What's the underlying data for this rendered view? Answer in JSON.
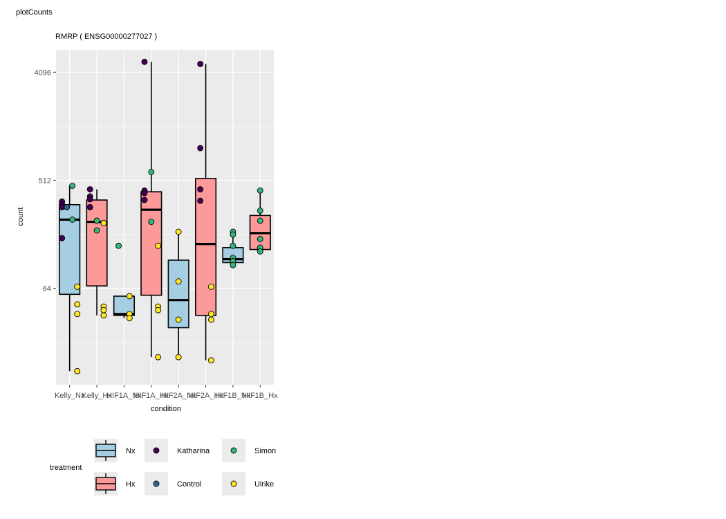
{
  "window_title": "plotCounts",
  "chart_data": {
    "type": "boxplot",
    "title": "RMRP ( ENSG00000277027 )",
    "xlabel": "condition",
    "ylabel": "count",
    "y_scale": "log2",
    "y_ticks": [
      64,
      512,
      4096
    ],
    "y_tick_labels": [
      "64",
      "512",
      "4096"
    ],
    "ylim": [
      10,
      6300
    ],
    "grid": true,
    "categories": [
      "Kelly_Nx",
      "Kelly_Hx",
      "HIF1A_Nx",
      "HIF1A_Hx",
      "HIF2A_Nx",
      "HIF2A_Hx",
      "HIF1B_Nx",
      "HIF1B_Hx"
    ],
    "boxes": [
      {
        "category": "Kelly_Nx",
        "treatment": "Nx",
        "q1": 57,
        "median": 240,
        "q3": 320,
        "lower": 13,
        "upper": 460
      },
      {
        "category": "Kelly_Hx",
        "treatment": "Hx",
        "q1": 67,
        "median": 230,
        "q3": 350,
        "lower": 38,
        "upper": 430
      },
      {
        "category": "HIF1A_Nx",
        "treatment": "Nx",
        "q1": 38,
        "median": 39,
        "q3": 55,
        "lower": 36,
        "upper": 55
      },
      {
        "category": "HIF1A_Hx",
        "treatment": "Hx",
        "q1": 56,
        "median": 290,
        "q3": 410,
        "lower": 17,
        "upper": 5000
      },
      {
        "category": "HIF2A_Nx",
        "treatment": "Nx",
        "q1": 30,
        "median": 51,
        "q3": 110,
        "lower": 17,
        "upper": 190
      },
      {
        "category": "HIF2A_Hx",
        "treatment": "Hx",
        "q1": 38,
        "median": 150,
        "q3": 530,
        "lower": 16,
        "upper": 4800
      },
      {
        "category": "HIF1B_Nx",
        "treatment": "Nx",
        "q1": 105,
        "median": 112,
        "q3": 140,
        "lower": 100,
        "upper": 180
      },
      {
        "category": "HIF1B_Hx",
        "treatment": "Hx",
        "q1": 135,
        "median": 185,
        "q3": 260,
        "lower": 125,
        "upper": 400
      }
    ],
    "points": [
      {
        "category": "Kelly_Nx",
        "group": "Katharina",
        "y": 340,
        "dx": -0.28
      },
      {
        "category": "Kelly_Nx",
        "group": "Katharina",
        "y": 320,
        "dx": -0.28
      },
      {
        "category": "Kelly_Nx",
        "group": "Katharina",
        "y": 305,
        "dx": -0.28
      },
      {
        "category": "Kelly_Nx",
        "group": "Katharina",
        "y": 168,
        "dx": -0.28
      },
      {
        "category": "Kelly_Nx",
        "group": "Control",
        "y": 305,
        "dx": -0.1
      },
      {
        "category": "Kelly_Nx",
        "group": "Simon",
        "y": 460,
        "dx": 0.1
      },
      {
        "category": "Kelly_Nx",
        "group": "Simon",
        "y": 240,
        "dx": 0.1
      },
      {
        "category": "Kelly_Nx",
        "group": "Ulrike",
        "y": 66,
        "dx": 0.28
      },
      {
        "category": "Kelly_Nx",
        "group": "Ulrike",
        "y": 47,
        "dx": 0.28
      },
      {
        "category": "Kelly_Nx",
        "group": "Ulrike",
        "y": 39,
        "dx": 0.28
      },
      {
        "category": "Kelly_Nx",
        "group": "Ulrike",
        "y": 13,
        "dx": 0.28
      },
      {
        "category": "Kelly_Hx",
        "group": "Katharina",
        "y": 430,
        "dx": -0.25
      },
      {
        "category": "Kelly_Hx",
        "group": "Katharina",
        "y": 375,
        "dx": -0.25
      },
      {
        "category": "Kelly_Hx",
        "group": "Katharina",
        "y": 355,
        "dx": -0.25
      },
      {
        "category": "Kelly_Hx",
        "group": "Katharina",
        "y": 305,
        "dx": -0.25
      },
      {
        "category": "Kelly_Hx",
        "group": "Simon",
        "y": 235,
        "dx": 0.0
      },
      {
        "category": "Kelly_Hx",
        "group": "Simon",
        "y": 195,
        "dx": 0.0
      },
      {
        "category": "Kelly_Hx",
        "group": "Ulrike",
        "y": 225,
        "dx": 0.25
      },
      {
        "category": "Kelly_Hx",
        "group": "Ulrike",
        "y": 45,
        "dx": 0.25
      },
      {
        "category": "Kelly_Hx",
        "group": "Ulrike",
        "y": 42,
        "dx": 0.25
      },
      {
        "category": "Kelly_Hx",
        "group": "Ulrike",
        "y": 38,
        "dx": 0.25
      },
      {
        "category": "HIF1A_Nx",
        "group": "Simon",
        "y": 145,
        "dx": -0.2
      },
      {
        "category": "HIF1A_Nx",
        "group": "Ulrike",
        "y": 55,
        "dx": 0.2
      },
      {
        "category": "HIF1A_Nx",
        "group": "Ulrike",
        "y": 39,
        "dx": 0.2
      },
      {
        "category": "HIF1A_Nx",
        "group": "Ulrike",
        "y": 36,
        "dx": 0.2
      },
      {
        "category": "HIF1A_Hx",
        "group": "Katharina",
        "y": 5000,
        "dx": -0.25
      },
      {
        "category": "HIF1A_Hx",
        "group": "Katharina",
        "y": 420,
        "dx": -0.25
      },
      {
        "category": "HIF1A_Hx",
        "group": "Katharina",
        "y": 400,
        "dx": -0.25
      },
      {
        "category": "HIF1A_Hx",
        "group": "Katharina",
        "y": 350,
        "dx": -0.25
      },
      {
        "category": "HIF1A_Hx",
        "group": "Simon",
        "y": 600,
        "dx": 0.0
      },
      {
        "category": "HIF1A_Hx",
        "group": "Simon",
        "y": 230,
        "dx": 0.0
      },
      {
        "category": "HIF1A_Hx",
        "group": "Ulrike",
        "y": 145,
        "dx": 0.25
      },
      {
        "category": "HIF1A_Hx",
        "group": "Ulrike",
        "y": 45,
        "dx": 0.25
      },
      {
        "category": "HIF1A_Hx",
        "group": "Ulrike",
        "y": 42,
        "dx": 0.25
      },
      {
        "category": "HIF1A_Hx",
        "group": "Ulrike",
        "y": 17,
        "dx": 0.25
      },
      {
        "category": "HIF2A_Nx",
        "group": "Ulrike",
        "y": 190,
        "dx": 0.0
      },
      {
        "category": "HIF2A_Nx",
        "group": "Ulrike",
        "y": 73,
        "dx": 0.0
      },
      {
        "category": "HIF2A_Nx",
        "group": "Ulrike",
        "y": 35,
        "dx": 0.0
      },
      {
        "category": "HIF2A_Nx",
        "group": "Ulrike",
        "y": 17,
        "dx": 0.0
      },
      {
        "category": "HIF2A_Hx",
        "group": "Katharina",
        "y": 4800,
        "dx": -0.2
      },
      {
        "category": "HIF2A_Hx",
        "group": "Katharina",
        "y": 950,
        "dx": -0.2
      },
      {
        "category": "HIF2A_Hx",
        "group": "Katharina",
        "y": 430,
        "dx": -0.2
      },
      {
        "category": "HIF2A_Hx",
        "group": "Katharina",
        "y": 345,
        "dx": -0.2
      },
      {
        "category": "HIF2A_Hx",
        "group": "Ulrike",
        "y": 66,
        "dx": 0.2
      },
      {
        "category": "HIF2A_Hx",
        "group": "Ulrike",
        "y": 39,
        "dx": 0.2
      },
      {
        "category": "HIF2A_Hx",
        "group": "Ulrike",
        "y": 35,
        "dx": 0.2
      },
      {
        "category": "HIF2A_Hx",
        "group": "Ulrike",
        "y": 16,
        "dx": 0.2
      },
      {
        "category": "HIF1B_Nx",
        "group": "Simon",
        "y": 190,
        "dx": 0.0
      },
      {
        "category": "HIF1B_Nx",
        "group": "Simon",
        "y": 180,
        "dx": 0.0
      },
      {
        "category": "HIF1B_Nx",
        "group": "Simon",
        "y": 145,
        "dx": 0.0
      },
      {
        "category": "HIF1B_Nx",
        "group": "Simon",
        "y": 115,
        "dx": 0.0
      },
      {
        "category": "HIF1B_Nx",
        "group": "Simon",
        "y": 108,
        "dx": 0.0
      },
      {
        "category": "HIF1B_Nx",
        "group": "Simon",
        "y": 100,
        "dx": 0.0
      },
      {
        "category": "HIF1B_Hx",
        "group": "Simon",
        "y": 420,
        "dx": 0.0
      },
      {
        "category": "HIF1B_Hx",
        "group": "Simon",
        "y": 285,
        "dx": 0.0
      },
      {
        "category": "HIF1B_Hx",
        "group": "Simon",
        "y": 235,
        "dx": 0.0
      },
      {
        "category": "HIF1B_Hx",
        "group": "Simon",
        "y": 165,
        "dx": 0.0
      },
      {
        "category": "HIF1B_Hx",
        "group": "Simon",
        "y": 140,
        "dx": 0.0
      },
      {
        "category": "HIF1B_Hx",
        "group": "Simon",
        "y": 130,
        "dx": 0.0
      }
    ],
    "colors": {
      "Nx": "#a6cee3",
      "Hx": "#fb9a99",
      "Katharina": "#440154",
      "Control": "#31688e",
      "Simon": "#35b779",
      "Ulrike": "#fde725",
      "panel": "#ebebeb",
      "grid": "#ffffff"
    },
    "legend": {
      "title": "treatment",
      "position": "bottom",
      "box_items": [
        {
          "label": "Nx",
          "key": "Nx"
        },
        {
          "label": "Hx",
          "key": "Hx"
        }
      ],
      "point_items": [
        {
          "label": "Katharina",
          "key": "Katharina"
        },
        {
          "label": "Control",
          "key": "Control"
        },
        {
          "label": "Simon",
          "key": "Simon"
        },
        {
          "label": "Ulrike",
          "key": "Ulrike"
        }
      ]
    }
  }
}
